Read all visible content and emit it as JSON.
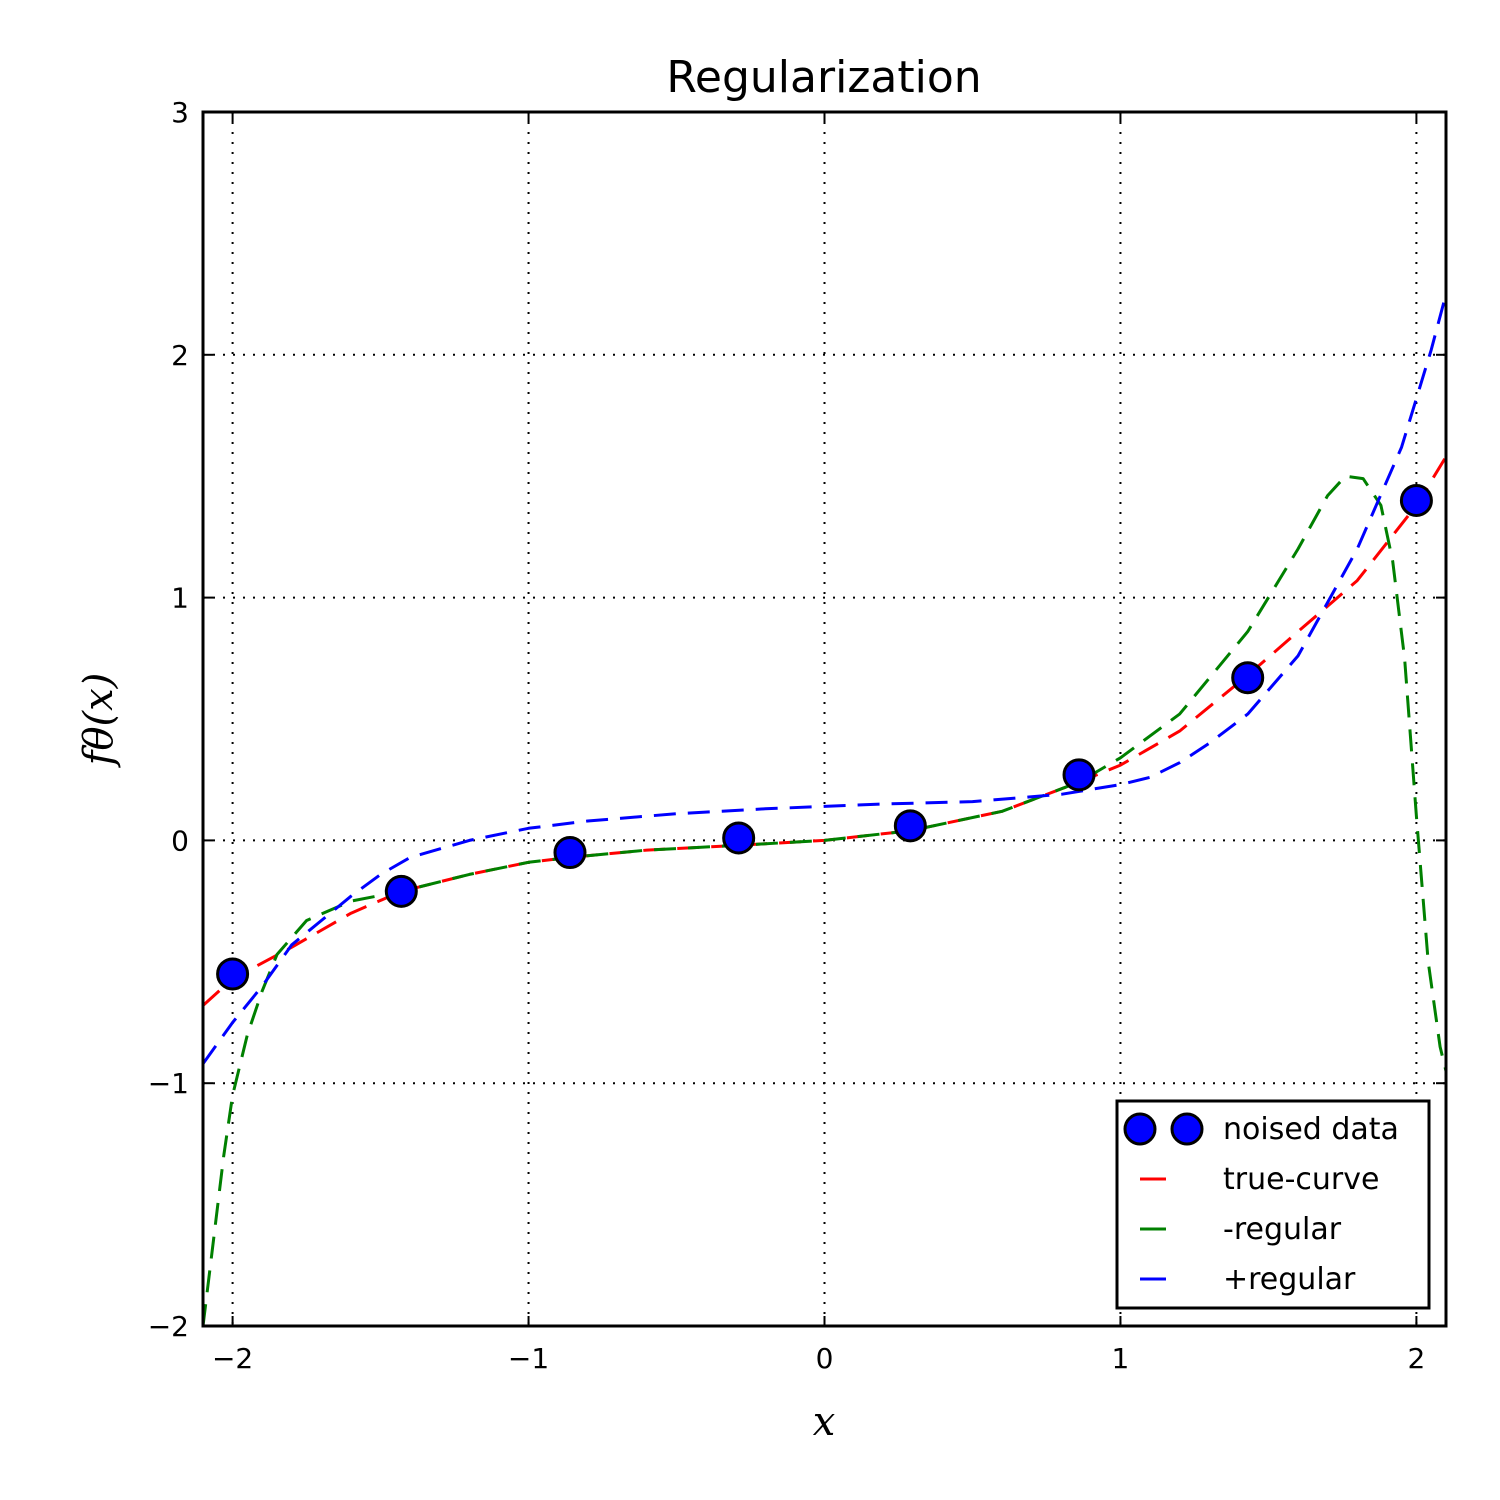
{
  "chart_data": {
    "type": "line",
    "title": "Regularization",
    "xlabel": "x",
    "ylabel": "fθ(x)",
    "xlim": [
      -2.1,
      2.1
    ],
    "ylim": [
      -2,
      3
    ],
    "xticks": [
      -2,
      -1,
      0,
      1,
      2
    ],
    "yticks": [
      -2,
      -1,
      0,
      1,
      2,
      3
    ],
    "xtick_labels": [
      "−2",
      "−1",
      "0",
      "1",
      "2"
    ],
    "ytick_labels": [
      "−2",
      "−1",
      "0",
      "1",
      "2",
      "3"
    ],
    "grid": true,
    "legend_position": "lower-right",
    "scatter": {
      "name": "noised data",
      "color": "#0000ff",
      "x": [
        -2.0,
        -1.43,
        -0.86,
        -0.29,
        0.29,
        0.86,
        1.43,
        2.0
      ],
      "y": [
        -0.55,
        -0.21,
        -0.05,
        0.01,
        0.06,
        0.27,
        0.67,
        1.4
      ]
    },
    "series": [
      {
        "name": "true-curve",
        "color": "#ff0000",
        "x": [
          -2.1,
          -2.0,
          -1.8,
          -1.6,
          -1.43,
          -1.2,
          -1.0,
          -0.86,
          -0.6,
          -0.29,
          0.0,
          0.29,
          0.6,
          0.86,
          1.0,
          1.2,
          1.43,
          1.6,
          1.8,
          2.0,
          2.1
        ],
        "y": [
          -0.68,
          -0.57,
          -0.44,
          -0.3,
          -0.21,
          -0.14,
          -0.09,
          -0.07,
          -0.04,
          -0.02,
          0.0,
          0.04,
          0.12,
          0.24,
          0.31,
          0.45,
          0.68,
          0.86,
          1.07,
          1.38,
          1.58
        ]
      },
      {
        "name": "-regular",
        "color": "#008000",
        "x": [
          -2.1,
          -2.07,
          -2.03,
          -2.0,
          -1.95,
          -1.9,
          -1.85,
          -1.75,
          -1.6,
          -1.43,
          -1.2,
          -1.0,
          -0.86,
          -0.6,
          -0.29,
          0.0,
          0.29,
          0.6,
          0.86,
          1.0,
          1.2,
          1.43,
          1.6,
          1.7,
          1.76,
          1.82,
          1.88,
          1.92,
          1.96,
          2.0,
          2.04,
          2.08,
          2.1
        ],
        "y": [
          -2.0,
          -1.7,
          -1.3,
          -1.05,
          -0.8,
          -0.62,
          -0.47,
          -0.33,
          -0.25,
          -0.21,
          -0.14,
          -0.09,
          -0.07,
          -0.04,
          -0.02,
          0.0,
          0.04,
          0.12,
          0.24,
          0.34,
          0.52,
          0.86,
          1.2,
          1.42,
          1.5,
          1.49,
          1.38,
          1.15,
          0.75,
          0.1,
          -0.5,
          -0.85,
          -0.95
        ]
      },
      {
        "name": "+regular",
        "color": "#0000ff",
        "x": [
          -2.1,
          -2.0,
          -1.9,
          -1.8,
          -1.7,
          -1.6,
          -1.5,
          -1.4,
          -1.2,
          -1.0,
          -0.8,
          -0.5,
          -0.2,
          0.0,
          0.2,
          0.5,
          0.8,
          0.9,
          1.0,
          1.1,
          1.2,
          1.3,
          1.43,
          1.6,
          1.8,
          1.95,
          2.05,
          2.1
        ],
        "y": [
          -0.92,
          -0.75,
          -0.6,
          -0.43,
          -0.33,
          -0.23,
          -0.14,
          -0.07,
          0.0,
          0.05,
          0.08,
          0.11,
          0.13,
          0.14,
          0.15,
          0.16,
          0.19,
          0.21,
          0.23,
          0.26,
          0.32,
          0.4,
          0.52,
          0.76,
          1.2,
          1.62,
          2.02,
          2.25
        ]
      }
    ]
  }
}
